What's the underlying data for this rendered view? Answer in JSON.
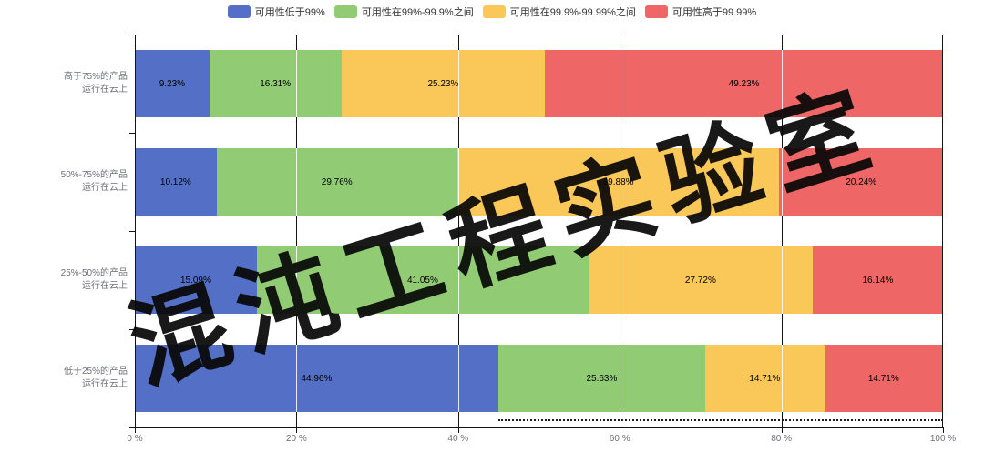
{
  "watermark": "混沌工程实验室",
  "chart_data": {
    "type": "bar",
    "orientation": "horizontal",
    "stacked": true,
    "title": "",
    "xlabel": "",
    "ylabel": "",
    "xlim": [
      0,
      100
    ],
    "grid": true,
    "legend_position": "top",
    "xticks": [
      "0 %",
      "20 %",
      "40 %",
      "60 %",
      "80 %",
      "100 %"
    ],
    "categories": [
      {
        "lines": [
          "高于75%的产品",
          "运行在云上"
        ]
      },
      {
        "lines": [
          "50%-75%的产品",
          "运行在云上"
        ]
      },
      {
        "lines": [
          "25%-50%的产品",
          "运行在云上"
        ]
      },
      {
        "lines": [
          "低于25%的产品",
          "运行在云上"
        ]
      }
    ],
    "series": [
      {
        "name": "可用性低于99%",
        "color": "#5470c6",
        "values": [
          9.23,
          10.12,
          15.09,
          44.96
        ]
      },
      {
        "name": "可用性在99%-99.9%之间",
        "color": "#91cc75",
        "values": [
          16.31,
          29.76,
          41.05,
          25.63
        ]
      },
      {
        "name": "可用性在99.9%-99.99%之间",
        "color": "#fac858",
        "values": [
          25.23,
          39.88,
          27.72,
          14.71
        ]
      },
      {
        "name": "可用性高于99.99%",
        "color": "#ee6666",
        "values": [
          49.23,
          20.24,
          16.14,
          14.71
        ]
      }
    ]
  },
  "colors": {
    "background": "#ffffff",
    "axis": "#141414",
    "axis_label": "#6e7079",
    "watermark": "#080808"
  }
}
